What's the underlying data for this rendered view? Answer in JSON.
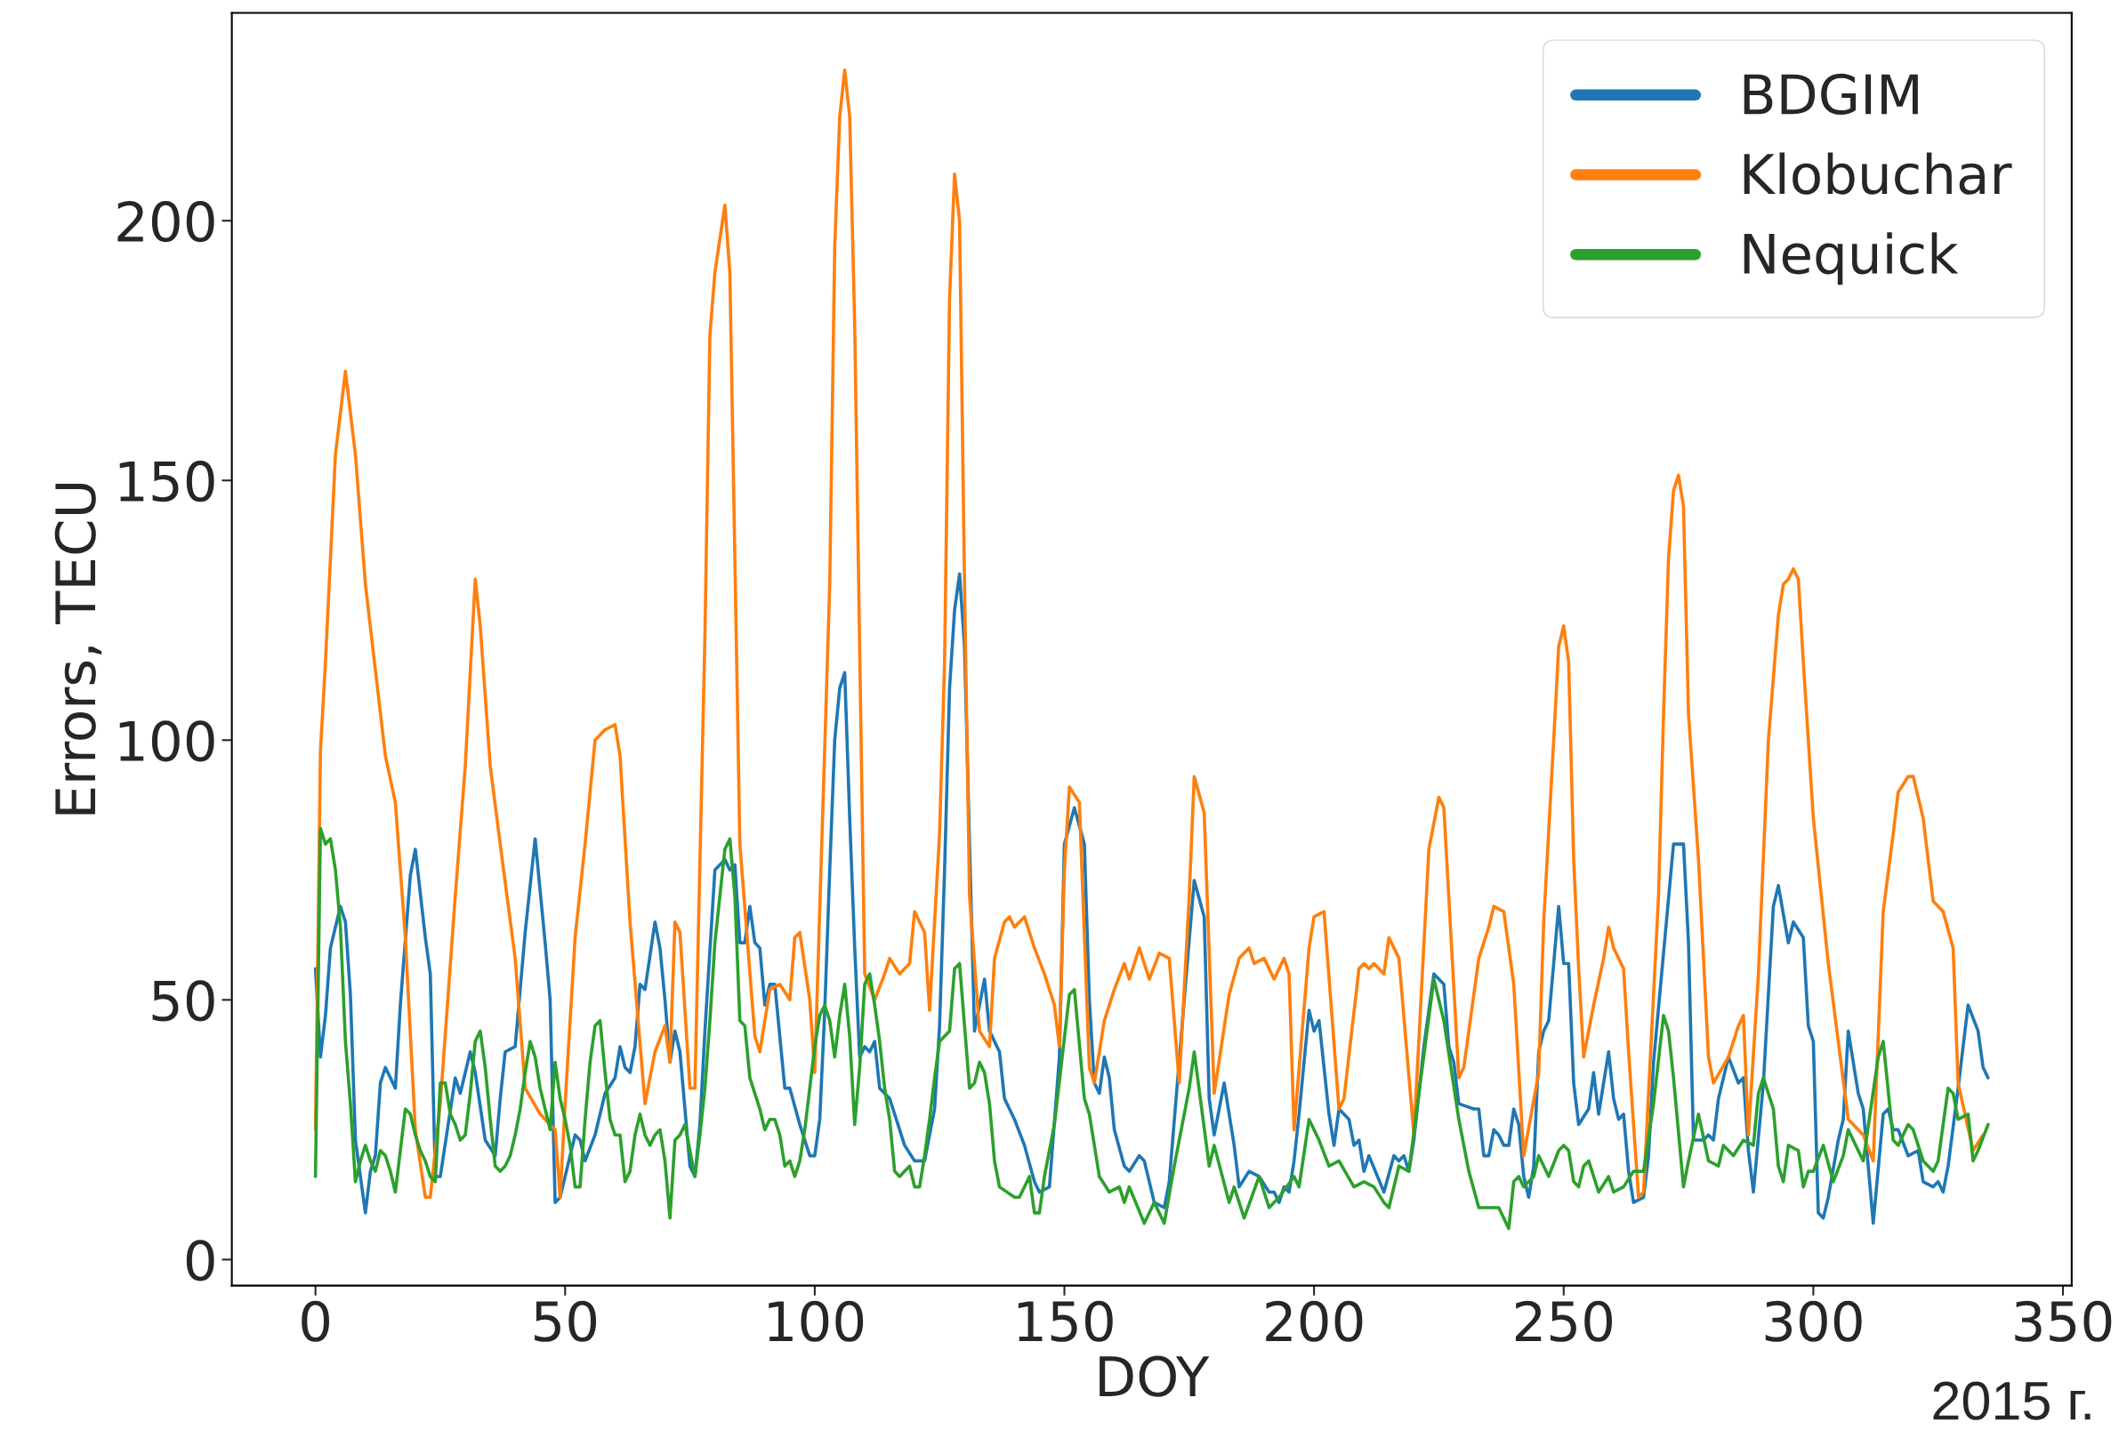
{
  "chart_data": {
    "type": "line",
    "xlabel": "DOY",
    "ylabel": "Errors, TECU",
    "xlim": [
      -16.75,
      351.75
    ],
    "ylim": [
      -5,
      240
    ],
    "xticks": [
      0,
      50,
      100,
      150,
      200,
      250,
      300,
      350
    ],
    "yticks": [
      0,
      50,
      100,
      150,
      200
    ],
    "grid": false,
    "legend": "top right",
    "annotations": [
      "2015 г."
    ],
    "series": [
      {
        "name": "BDGIM",
        "color": "#1f77b4",
        "x": [
          0,
          1,
          2,
          3,
          5,
          6,
          7,
          8,
          10,
          11,
          12,
          13,
          14,
          16,
          17,
          19,
          20,
          22,
          23,
          24,
          25,
          28,
          29,
          31,
          32,
          34,
          36,
          37,
          38,
          40,
          42,
          44,
          46,
          47,
          48,
          49,
          52,
          53,
          54,
          56,
          58,
          60,
          61,
          62,
          63,
          64,
          65,
          66,
          68,
          69,
          70,
          71,
          72,
          73,
          75,
          76,
          77,
          78,
          80,
          82,
          83,
          84,
          85,
          86,
          87,
          88,
          89,
          90,
          91,
          92,
          93,
          94,
          95,
          97,
          99,
          100,
          101,
          102,
          103,
          104,
          105,
          106,
          107,
          108,
          109,
          110,
          111,
          112,
          113,
          115,
          118,
          120,
          122,
          124,
          125,
          126,
          127,
          128,
          129,
          130,
          131,
          132,
          134,
          135,
          137,
          138,
          140,
          142,
          144,
          145,
          147,
          149,
          150,
          152,
          154,
          155,
          156,
          157,
          158,
          159,
          160,
          162,
          163,
          165,
          166,
          168,
          170,
          171,
          174,
          176,
          178,
          179,
          180,
          182,
          184,
          185,
          187,
          189,
          191,
          192,
          193,
          194,
          195,
          196,
          197,
          199,
          200,
          201,
          203,
          204,
          205,
          207,
          208,
          209,
          210,
          211,
          214,
          216,
          217,
          218,
          219,
          220,
          222,
          224,
          226,
          227,
          228,
          229,
          232,
          233,
          234,
          235,
          236,
          237,
          238,
          239,
          240,
          241,
          242,
          243,
          244,
          245,
          246,
          247,
          248,
          249,
          250,
          251,
          252,
          253,
          255,
          256,
          257,
          259,
          260,
          261,
          262,
          263,
          264,
          266,
          267,
          268,
          270,
          272,
          274,
          275,
          276,
          278,
          279,
          280,
          281,
          283,
          285,
          286,
          287,
          288,
          290,
          292,
          293,
          295,
          296,
          298,
          299,
          300,
          301,
          302,
          303,
          305,
          306,
          307,
          309,
          310,
          312,
          314,
          315,
          316,
          317,
          319,
          321,
          322,
          324,
          325,
          326,
          327,
          329,
          331,
          333,
          334,
          335
        ],
        "values": [
          56,
          39,
          47,
          60,
          68,
          65,
          51,
          23,
          9,
          17,
          20,
          34,
          37,
          33,
          49,
          74,
          79,
          62,
          55,
          16,
          16,
          35,
          32,
          40,
          36,
          23,
          20,
          31,
          40,
          41,
          63,
          81,
          61,
          50,
          11,
          12,
          24,
          23,
          19,
          24,
          32,
          35,
          41,
          37,
          36,
          41,
          53,
          52,
          65,
          60,
          50,
          38,
          44,
          40,
          18,
          16,
          26,
          44,
          75,
          77,
          75,
          76,
          61,
          61,
          68,
          61,
          60,
          49,
          53,
          53,
          43,
          33,
          33,
          26,
          20,
          20,
          27,
          48,
          75,
          100,
          110,
          113,
          85,
          60,
          39,
          41,
          40,
          42,
          33,
          31,
          22,
          19,
          19,
          29,
          45,
          75,
          110,
          125,
          132,
          118,
          80,
          44,
          54,
          44,
          40,
          31,
          27,
          22,
          15,
          13,
          14,
          39,
          80,
          87,
          80,
          50,
          34,
          32,
          39,
          35,
          25,
          18,
          17,
          20,
          19,
          11,
          10,
          15,
          50,
          73,
          66,
          31,
          24,
          34,
          22,
          14,
          17,
          16,
          13,
          13,
          11,
          14,
          13,
          19,
          28,
          48,
          44,
          46,
          28,
          22,
          29,
          27,
          22,
          23,
          17,
          20,
          13,
          20,
          19,
          20,
          17,
          23,
          41,
          55,
          53,
          41,
          38,
          30,
          29,
          29,
          20,
          20,
          25,
          24,
          22,
          22,
          29,
          26,
          16,
          12,
          18,
          40,
          44,
          46,
          57,
          68,
          57,
          57,
          34,
          26,
          29,
          36,
          28,
          40,
          31,
          27,
          28,
          17,
          11,
          12,
          20,
          38,
          59,
          80,
          80,
          61,
          23,
          23,
          24,
          23,
          31,
          39,
          34,
          35,
          21,
          13,
          34,
          68,
          72,
          61,
          65,
          62,
          45,
          42,
          9,
          8,
          12,
          23,
          27,
          44,
          32,
          29,
          7,
          28,
          29,
          25,
          25,
          20,
          21,
          15,
          14,
          15,
          13,
          18,
          33,
          49,
          44,
          37,
          35
        ]
      },
      {
        "name": "Klobuchar",
        "color": "#ff7f0e",
        "x": [
          0,
          1,
          2,
          4,
          6,
          8,
          10,
          14,
          16,
          18,
          20,
          22,
          23,
          25,
          28,
          30,
          32,
          33,
          35,
          37,
          40,
          42,
          45,
          48,
          49,
          50,
          52,
          54,
          56,
          58,
          60,
          61,
          63,
          66,
          68,
          70,
          71,
          72,
          73,
          75,
          76,
          78,
          79,
          80,
          82,
          83,
          85,
          88,
          89,
          91,
          93,
          95,
          96,
          97,
          99,
          100,
          103,
          104,
          105,
          106,
          107,
          108,
          110,
          112,
          114,
          115,
          117,
          119,
          120,
          122,
          123,
          125,
          126,
          127,
          128,
          129,
          130,
          131,
          133,
          135,
          136,
          138,
          139,
          140,
          141,
          142,
          144,
          146,
          148,
          149,
          150,
          151,
          153,
          155,
          156,
          158,
          160,
          162,
          163,
          165,
          167,
          169,
          171,
          173,
          175,
          176,
          178,
          180,
          183,
          185,
          187,
          188,
          190,
          192,
          194,
          195,
          196,
          199,
          200,
          202,
          205,
          206,
          209,
          210,
          211,
          212,
          214,
          215,
          217,
          220,
          223,
          225,
          226,
          229,
          230,
          233,
          235,
          236,
          238,
          240,
          242,
          245,
          246,
          248,
          249,
          250,
          251,
          252,
          253,
          254,
          256,
          258,
          259,
          260,
          262,
          263,
          265,
          266,
          269,
          270,
          271,
          272,
          273,
          274,
          275,
          277,
          279,
          280,
          283,
          285,
          286,
          287,
          289,
          291,
          293,
          294,
          295,
          296,
          297,
          298,
          300,
          303,
          307,
          310,
          312,
          314,
          316,
          317,
          319,
          320,
          322,
          324,
          326,
          328,
          329,
          332,
          334
        ],
        "values": [
          25,
          98,
          115,
          155,
          171,
          155,
          130,
          97,
          88,
          62,
          25,
          12,
          12,
          30,
          70,
          95,
          131,
          122,
          95,
          80,
          58,
          33,
          28,
          25,
          12,
          30,
          62,
          80,
          100,
          102,
          103,
          97,
          65,
          30,
          40,
          45,
          38,
          65,
          63,
          33,
          33,
          120,
          178,
          190,
          203,
          190,
          80,
          43,
          40,
          52,
          53,
          50,
          62,
          63,
          50,
          36,
          130,
          195,
          220,
          229,
          220,
          180,
          55,
          50,
          55,
          58,
          55,
          57,
          67,
          63,
          48,
          82,
          115,
          185,
          209,
          200,
          130,
          70,
          44,
          41,
          58,
          65,
          66,
          64,
          65,
          66,
          60,
          55,
          49,
          41,
          75,
          91,
          88,
          37,
          34,
          46,
          52,
          57,
          54,
          60,
          54,
          59,
          58,
          34,
          70,
          93,
          86,
          32,
          51,
          58,
          60,
          57,
          58,
          54,
          58,
          55,
          25,
          60,
          66,
          67,
          29,
          31,
          56,
          57,
          56,
          57,
          55,
          62,
          58,
          24,
          79,
          89,
          87,
          35,
          37,
          58,
          64,
          68,
          67,
          53,
          20,
          36,
          65,
          100,
          118,
          122,
          115,
          77,
          56,
          39,
          49,
          58,
          64,
          60,
          56,
          40,
          12,
          13,
          70,
          105,
          135,
          148,
          151,
          145,
          105,
          77,
          39,
          34,
          39,
          45,
          47,
          24,
          55,
          100,
          124,
          130,
          131,
          133,
          131,
          115,
          85,
          57,
          27,
          24,
          19,
          67,
          82,
          90,
          93,
          93,
          85,
          69,
          67,
          60,
          34,
          21,
          24
        ]
      },
      {
        "name": "Nequick",
        "color": "#2ca02c",
        "x": [
          0,
          1,
          2,
          3,
          4,
          5,
          6,
          7,
          8,
          9,
          10,
          11,
          12,
          13,
          14,
          15,
          16,
          17,
          18,
          19,
          20,
          21,
          22,
          23,
          24,
          25,
          26,
          27,
          28,
          29,
          30,
          31,
          32,
          33,
          34,
          35,
          36,
          37,
          38,
          39,
          40,
          41,
          42,
          43,
          44,
          45,
          46,
          47,
          48,
          49,
          50,
          51,
          52,
          53,
          54,
          55,
          56,
          57,
          58,
          59,
          60,
          61,
          62,
          63,
          64,
          65,
          66,
          67,
          68,
          69,
          70,
          71,
          72,
          73,
          74,
          75,
          76,
          77,
          78,
          79,
          80,
          81,
          82,
          83,
          84,
          85,
          86,
          87,
          89,
          90,
          91,
          92,
          93,
          94,
          95,
          96,
          97,
          98,
          99,
          100,
          101,
          102,
          103,
          104,
          105,
          106,
          107,
          108,
          109,
          110,
          111,
          112,
          113,
          114,
          115,
          116,
          117,
          118,
          119,
          120,
          121,
          122,
          123,
          124,
          125,
          127,
          128,
          129,
          131,
          132,
          133,
          134,
          135,
          136,
          137,
          140,
          141,
          143,
          144,
          145,
          146,
          148,
          151,
          152,
          154,
          155,
          157,
          159,
          161,
          162,
          163,
          166,
          168,
          170,
          172,
          175,
          176,
          179,
          180,
          183,
          184,
          186,
          189,
          191,
          193,
          196,
          197,
          199,
          201,
          203,
          205,
          208,
          210,
          212,
          214,
          215,
          217,
          219,
          221,
          224,
          226,
          229,
          231,
          233,
          237,
          239,
          240,
          241,
          242,
          244,
          245,
          247,
          249,
          250,
          251,
          252,
          253,
          254,
          255,
          257,
          259,
          260,
          262,
          264,
          266,
          268,
          270,
          271,
          272,
          274,
          275,
          277,
          279,
          281,
          282,
          284,
          286,
          288,
          289,
          290,
          292,
          293,
          294,
          295,
          297,
          298,
          299,
          300,
          302,
          304,
          306,
          307,
          310,
          313,
          314,
          316,
          317,
          319,
          320,
          322,
          324,
          325,
          327,
          328,
          329,
          331,
          332,
          333,
          335
        ],
        "values": [
          16,
          83,
          80,
          81,
          75,
          64,
          42,
          30,
          15,
          19,
          22,
          19,
          17,
          21,
          20,
          17,
          13,
          21,
          29,
          28,
          24,
          21,
          19,
          16,
          15,
          34,
          34,
          28,
          26,
          23,
          24,
          32,
          42,
          44,
          37,
          27,
          18,
          17,
          18,
          20,
          24,
          29,
          36,
          42,
          39,
          33,
          29,
          25,
          38,
          31,
          27,
          22,
          14,
          14,
          27,
          38,
          45,
          46,
          36,
          27,
          24,
          24,
          15,
          17,
          24,
          28,
          24,
          22,
          24,
          25,
          19,
          8,
          23,
          24,
          26,
          21,
          16,
          24,
          33,
          46,
          61,
          70,
          79,
          81,
          70,
          46,
          45,
          35,
          29,
          25,
          27,
          27,
          24,
          18,
          19,
          16,
          19,
          25,
          33,
          41,
          47,
          49,
          46,
          39,
          47,
          53,
          43,
          26,
          37,
          53,
          55,
          49,
          42,
          33,
          27,
          17,
          16,
          17,
          18,
          14,
          14,
          20,
          27,
          35,
          42,
          44,
          56,
          57,
          33,
          34,
          38,
          36,
          30,
          19,
          14,
          12,
          12,
          16,
          9,
          9,
          16,
          26,
          51,
          52,
          31,
          28,
          16,
          13,
          14,
          11,
          14,
          7,
          11,
          7,
          18,
          33,
          40,
          18,
          22,
          11,
          14,
          8,
          16,
          10,
          12,
          16,
          14,
          27,
          23,
          18,
          19,
          14,
          15,
          14,
          11,
          10,
          18,
          17,
          32,
          54,
          46,
          27,
          17,
          10,
          10,
          6,
          15,
          16,
          14,
          16,
          20,
          16,
          21,
          22,
          21,
          15,
          14,
          18,
          19,
          13,
          16,
          13,
          14,
          17,
          17,
          30,
          47,
          44,
          35,
          14,
          19,
          28,
          19,
          18,
          22,
          20,
          23,
          22,
          32,
          35,
          29,
          18,
          15,
          22,
          21,
          14,
          17,
          17,
          22,
          15,
          20,
          25,
          19,
          39,
          42,
          23,
          22,
          26,
          25,
          19,
          17,
          19,
          33,
          32,
          27,
          28,
          19,
          21,
          26
        ]
      }
    ]
  }
}
